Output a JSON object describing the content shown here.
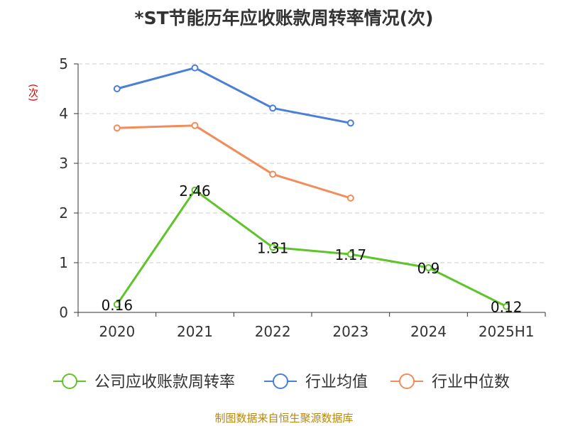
{
  "chart_data": {
    "type": "line",
    "title": "*ST节能历年应收账款周转率情况(次)",
    "ylabel": "(次)",
    "categories": [
      "2020",
      "2021",
      "2022",
      "2023",
      "2024",
      "2025H1"
    ],
    "ylim": [
      0,
      5
    ],
    "yticks": [
      "0",
      "1",
      "2",
      "3",
      "4",
      "5"
    ],
    "grid": true,
    "legend_position": "bottom",
    "series": [
      {
        "name": "公司应收账款周转率",
        "color": "#5ec42a",
        "values": [
          0.16,
          2.46,
          1.31,
          1.17,
          0.9,
          0.12
        ],
        "labels": [
          "0.16",
          "2.46",
          "1.31",
          "1.17",
          "0.9",
          "0.12"
        ]
      },
      {
        "name": "行业均值",
        "color": "#4a7fd8",
        "values": [
          4.5,
          4.92,
          4.11,
          3.81,
          null,
          null
        ]
      },
      {
        "name": "行业中位数",
        "color": "#f28c5a",
        "values": [
          3.71,
          3.76,
          2.78,
          2.3,
          null,
          null
        ]
      }
    ],
    "source": "制图数据来自恒生聚源数据库"
  }
}
